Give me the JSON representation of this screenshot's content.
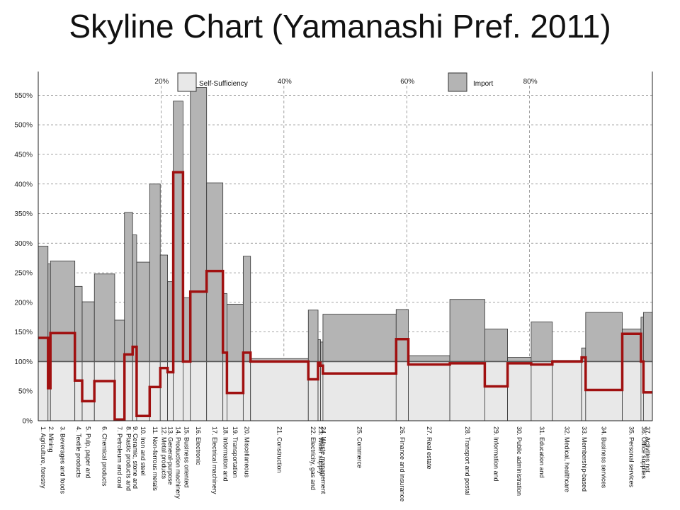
{
  "chart_data": {
    "type": "bar",
    "title": "Skyline Chart (Yamanashi Pref. 2011)",
    "y_ticks": [
      "0%",
      "50%",
      "100%",
      "150%",
      "200%",
      "250%",
      "300%",
      "350%",
      "400%",
      "450%",
      "500%",
      "550%"
    ],
    "ylim": [
      0,
      590
    ],
    "xlim": [
      0,
      100
    ],
    "x_ticks": [
      {
        "x": 20,
        "label": "20%"
      },
      {
        "x": 40,
        "label": "40%"
      },
      {
        "x": 60,
        "label": "60%"
      },
      {
        "x": 80,
        "label": "80%"
      }
    ],
    "grid": true,
    "legend_position": "top",
    "legend": {
      "self_sufficiency": "Self-Sufficiency",
      "import": "Import"
    },
    "colors": {
      "self_sufficiency": "#e8e8e8",
      "import": "#b4b4b4",
      "line": "#a01010",
      "border": "#333333",
      "grid": "#888888"
    },
    "categories": [
      "1. Agriculture, forestry",
      "2. Mining",
      "3. Beverages and foods",
      "4. Textile products",
      "5. Pulp, paper and",
      "6. Chemical products",
      "7. Petroleum and coal",
      "8. Plastic products and",
      "9. Ceramic, stone and",
      "10. Iron and steel",
      "11. Non-ferrous metals",
      "12. Metal products",
      "13. General-purpose",
      "14. Production machinery",
      "15. Business oriented",
      "16. Electronic",
      "17. Electrical machinery",
      "18. Information and",
      "19. Transportation",
      "20. Miscellaneous",
      "21. Construction",
      "22. Electricity, gas and",
      "23. Water supply",
      "24. Waste management",
      "25. Commerce",
      "26. Finance and insurance",
      "27. Real estate",
      "28. Transport and postal",
      "29. Information and",
      "30. Public administration",
      "31. Education and",
      "32. Medical, healthcare",
      "33. Membership-based",
      "34. Business services",
      "35. Personal services",
      "36. Office supplies",
      "37. Activities not"
    ],
    "width_share": [
      1.2,
      0.3,
      3.0,
      0.9,
      1.5,
      2.5,
      1.2,
      1.0,
      0.5,
      1.6,
      1.3,
      0.9,
      0.7,
      1.2,
      0.9,
      2.0,
      2.0,
      0.5,
      2.0,
      0.9,
      7.1,
      1.2,
      0.3,
      0.3,
      9.0,
      1.5,
      5.1,
      4.3,
      2.8,
      2.9,
      2.6,
      3.6,
      0.5,
      4.5,
      2.3,
      0.3,
      1.1
    ],
    "domestic_production": [
      140,
      55,
      148,
      68,
      33,
      67,
      2,
      112,
      125,
      8,
      57,
      89,
      82,
      420,
      100,
      218,
      253,
      115,
      47,
      115,
      100,
      70,
      98,
      93,
      80,
      138,
      95,
      97,
      58,
      97,
      95,
      100,
      107,
      52,
      147,
      100,
      48
    ],
    "total_demand": [
      295,
      265,
      270,
      227,
      201,
      248,
      170,
      352,
      314,
      268,
      400,
      280,
      235,
      540,
      208,
      563,
      402,
      215,
      197,
      278,
      105,
      187,
      137,
      133,
      180,
      188,
      110,
      205,
      155,
      107,
      167,
      102,
      123,
      183,
      155,
      175,
      183
    ]
  }
}
